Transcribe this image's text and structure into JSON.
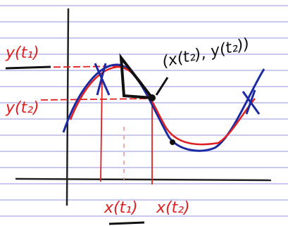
{
  "labels": {
    "y1": "y(t₁)",
    "y2": "y(t₂)",
    "x1": "x(t₁)",
    "x2": "x(t₂)",
    "point": "(x(t₂), y(t₂))"
  }
}
